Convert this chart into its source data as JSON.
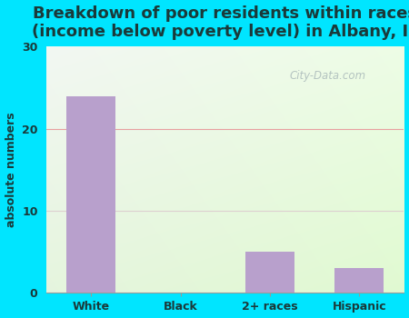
{
  "title": "Breakdown of poor residents within races\n(income below poverty level) in Albany, IL",
  "categories": [
    "White",
    "Black",
    "2+ races",
    "Hispanic"
  ],
  "values": [
    24,
    0,
    5,
    3
  ],
  "bar_color": "#b8a0cc",
  "ylabel": "absolute numbers",
  "ylim": [
    0,
    30
  ],
  "yticks": [
    0,
    10,
    20,
    30
  ],
  "bg_outer": "#00e5ff",
  "grid_color_20": "#e8a0a0",
  "grid_color_10": "#ddd0d0",
  "title_color": "#1a3a3a",
  "title_fontsize": 13,
  "axis_label_color": "#1a3a3a",
  "tick_color": "#1a3a3a",
  "watermark": "City-Data.com"
}
